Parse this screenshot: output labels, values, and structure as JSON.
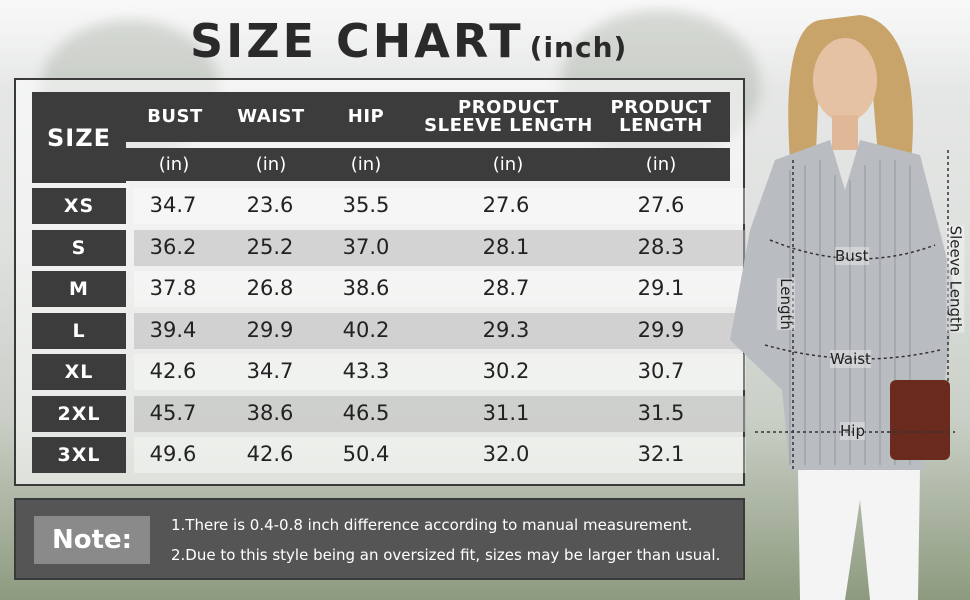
{
  "title": {
    "main": "SIZE CHART",
    "unit": "(inch)"
  },
  "table": {
    "size_header": "SIZE",
    "columns": [
      {
        "label_line1": "BUST",
        "label_line2": "",
        "unit": "(in)"
      },
      {
        "label_line1": "WAIST",
        "label_line2": "",
        "unit": "(in)"
      },
      {
        "label_line1": "HIP",
        "label_line2": "",
        "unit": "(in)"
      },
      {
        "label_line1": "PRODUCT",
        "label_line2": "SLEEVE LENGTH",
        "unit": "(in)"
      },
      {
        "label_line1": "PRODUCT",
        "label_line2": "LENGTH",
        "unit": "(in)"
      }
    ],
    "rows": [
      {
        "size": "XS",
        "values": [
          "34.7",
          "23.6",
          "35.5",
          "27.6",
          "27.6"
        ]
      },
      {
        "size": "S",
        "values": [
          "36.2",
          "25.2",
          "37.0",
          "28.1",
          "28.3"
        ]
      },
      {
        "size": "M",
        "values": [
          "37.8",
          "26.8",
          "38.6",
          "28.7",
          "29.1"
        ]
      },
      {
        "size": "L",
        "values": [
          "39.4",
          "29.9",
          "40.2",
          "29.3",
          "29.9"
        ]
      },
      {
        "size": "XL",
        "values": [
          "42.6",
          "34.7",
          "43.3",
          "30.2",
          "30.7"
        ]
      },
      {
        "size": "2XL",
        "values": [
          "45.7",
          "38.6",
          "46.5",
          "31.1",
          "31.5"
        ]
      },
      {
        "size": "3XL",
        "values": [
          "49.6",
          "42.6",
          "50.4",
          "32.0",
          "32.1"
        ]
      }
    ]
  },
  "note": {
    "label": "Note:",
    "lines": [
      "1.There is 0.4-0.8 inch difference according to manual measurement.",
      "2.Due to this style being an oversized fit, sizes may be larger than usual."
    ]
  },
  "measurements": {
    "bust": "Bust",
    "waist": "Waist",
    "hip": "Hip",
    "length": "Length",
    "sleeve_length": "Sleeve Length"
  },
  "colors": {
    "header_bg": "#3c3c3c",
    "note_bg": "#555555",
    "note_label_bg": "#8a8a8a"
  }
}
